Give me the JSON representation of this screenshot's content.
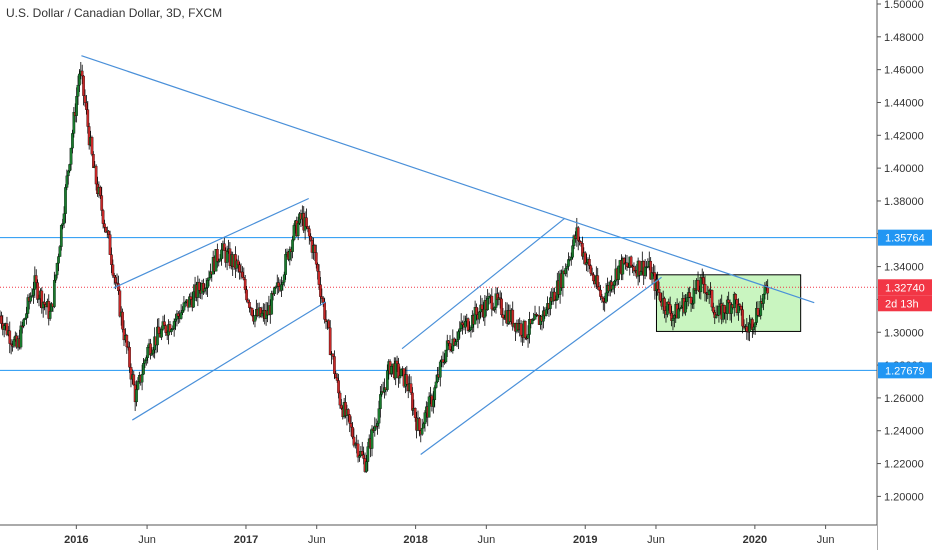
{
  "header": {
    "title": "U.S. Dollar / Canadian Dollar, 3D, FXCM"
  },
  "chart_data": {
    "type": "candlestick",
    "title": "U.S. Dollar / Canadian Dollar, 3D, FXCM",
    "ylim": [
      1.185,
      1.5
    ],
    "y_ticks": [
      "1.50000",
      "1.48000",
      "1.46000",
      "1.44000",
      "1.42000",
      "1.40000",
      "1.38000",
      "1.36000",
      "1.34000",
      "1.32000",
      "1.30000",
      "1.28000",
      "1.26000",
      "1.24000",
      "1.22000",
      "1.20000"
    ],
    "x_ticks": [
      {
        "label": "2016",
        "t": 2016.0,
        "bold": true
      },
      {
        "label": "Jun",
        "t": 2016.417,
        "bold": false
      },
      {
        "label": "2017",
        "t": 2017.0,
        "bold": true
      },
      {
        "label": "Jun",
        "t": 2017.417,
        "bold": false
      },
      {
        "label": "2018",
        "t": 2018.0,
        "bold": true
      },
      {
        "label": "Jun",
        "t": 2018.417,
        "bold": false
      },
      {
        "label": "2019",
        "t": 2019.0,
        "bold": true
      },
      {
        "label": "Jun",
        "t": 2019.417,
        "bold": false
      },
      {
        "label": "2020",
        "t": 2020.0,
        "bold": true
      },
      {
        "label": "Jun",
        "t": 2020.417,
        "bold": false
      }
    ],
    "xlim": [
      2015.55,
      2020.72
    ],
    "price_path": [
      [
        2015.55,
        1.31
      ],
      [
        2015.65,
        1.29
      ],
      [
        2015.75,
        1.33
      ],
      [
        2015.85,
        1.31
      ],
      [
        2015.93,
        1.38
      ],
      [
        2016.02,
        1.46
      ],
      [
        2016.05,
        1.44
      ],
      [
        2016.1,
        1.4
      ],
      [
        2016.2,
        1.35
      ],
      [
        2016.28,
        1.3
      ],
      [
        2016.35,
        1.26
      ],
      [
        2016.42,
        1.29
      ],
      [
        2016.5,
        1.3
      ],
      [
        2016.6,
        1.31
      ],
      [
        2016.75,
        1.33
      ],
      [
        2016.85,
        1.35
      ],
      [
        2016.95,
        1.34
      ],
      [
        2017.05,
        1.31
      ],
      [
        2017.12,
        1.31
      ],
      [
        2017.2,
        1.33
      ],
      [
        2017.28,
        1.36
      ],
      [
        2017.33,
        1.37
      ],
      [
        2017.4,
        1.35
      ],
      [
        2017.45,
        1.32
      ],
      [
        2017.55,
        1.26
      ],
      [
        2017.62,
        1.24
      ],
      [
        2017.7,
        1.22
      ],
      [
        2017.75,
        1.24
      ],
      [
        2017.85,
        1.28
      ],
      [
        2017.95,
        1.27
      ],
      [
        2018.02,
        1.24
      ],
      [
        2018.1,
        1.26
      ],
      [
        2018.18,
        1.29
      ],
      [
        2018.25,
        1.3
      ],
      [
        2018.35,
        1.31
      ],
      [
        2018.45,
        1.32
      ],
      [
        2018.55,
        1.31
      ],
      [
        2018.65,
        1.3
      ],
      [
        2018.75,
        1.31
      ],
      [
        2018.85,
        1.33
      ],
      [
        2018.95,
        1.36
      ],
      [
        2019.02,
        1.34
      ],
      [
        2019.1,
        1.32
      ],
      [
        2019.2,
        1.34
      ],
      [
        2019.3,
        1.34
      ],
      [
        2019.37,
        1.34
      ],
      [
        2019.45,
        1.32
      ],
      [
        2019.52,
        1.31
      ],
      [
        2019.6,
        1.32
      ],
      [
        2019.7,
        1.33
      ],
      [
        2019.78,
        1.31
      ],
      [
        2019.88,
        1.32
      ],
      [
        2019.95,
        1.3
      ],
      [
        2020.0,
        1.31
      ],
      [
        2020.08,
        1.3274
      ]
    ],
    "trendlines": [
      {
        "name": "long-descending-trendline",
        "t1": 2016.03,
        "p1": 1.4685,
        "t2": 2020.35,
        "p2": 1.318
      },
      {
        "name": "channel-2016-upper",
        "t1": 2016.22,
        "p1": 1.327,
        "t2": 2017.37,
        "p2": 1.3815
      },
      {
        "name": "channel-2016-lower",
        "t1": 2016.33,
        "p1": 1.2465,
        "t2": 2017.47,
        "p2": 1.3185
      },
      {
        "name": "channel-2018-upper",
        "t1": 2017.92,
        "p1": 1.29,
        "t2": 2018.88,
        "p2": 1.3695
      },
      {
        "name": "channel-2018-lower",
        "t1": 2018.03,
        "p1": 1.2255,
        "t2": 2019.45,
        "p2": 1.3335
      }
    ],
    "horizontal_levels": [
      {
        "name": "level-resistance",
        "value": 1.35764,
        "label": "1.35764",
        "color": "#2196f3"
      },
      {
        "name": "level-support",
        "value": 1.27679,
        "label": "1.27679",
        "color": "#2196f3"
      }
    ],
    "current_price": {
      "value": 1.3274,
      "label": "1.32740",
      "countdown": "2d 13h",
      "color": "#f23645"
    },
    "range_box": {
      "t1": 2019.42,
      "t2": 2020.27,
      "p_top": 1.335,
      "p_bottom": 1.3005,
      "fill": "#c9f5c0",
      "stroke": "#000000"
    },
    "colors": {
      "up": "#1a7a2e",
      "down": "#c62828",
      "wick": "#000000",
      "trend": "#4a90d9",
      "grid": "#ffffff"
    }
  }
}
